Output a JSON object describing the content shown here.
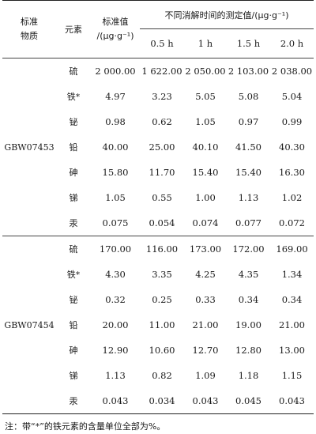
{
  "header": {
    "col_material_line1": "标准",
    "col_material_line2": "物质",
    "col_element": "元素",
    "col_standard_line1": "标准值",
    "col_standard_line2": "/(μg·g⁻¹)",
    "col_measured_group": "不同消解时间的测定值/(μg·g⁻¹)",
    "times": [
      "0.5 h",
      "1 h",
      "1.5 h",
      "2.0 h"
    ]
  },
  "groups": [
    {
      "material": "GBW07453",
      "rows": [
        {
          "element": "硫",
          "standard": "2 000.00",
          "values": [
            "1 622.00",
            "2 050.00",
            "2 103.00",
            "2 038.00"
          ]
        },
        {
          "element": "铁*",
          "standard": "4.97",
          "values": [
            "3.23",
            "5.05",
            "5.08",
            "5.04"
          ]
        },
        {
          "element": "铋",
          "standard": "0.98",
          "values": [
            "0.62",
            "1.05",
            "0.97",
            "0.99"
          ]
        },
        {
          "element": "铅",
          "standard": "40.00",
          "values": [
            "25.00",
            "40.10",
            "41.50",
            "40.30"
          ]
        },
        {
          "element": "砷",
          "standard": "15.80",
          "values": [
            "11.70",
            "15.40",
            "15.40",
            "16.30"
          ]
        },
        {
          "element": "锑",
          "standard": "1.05",
          "values": [
            "0.55",
            "1.00",
            "1.13",
            "1.02"
          ]
        },
        {
          "element": "汞",
          "standard": "0.075",
          "values": [
            "0.054",
            "0.074",
            "0.077",
            "0.072"
          ]
        }
      ]
    },
    {
      "material": "GBW07454",
      "rows": [
        {
          "element": "硫",
          "standard": "170.00",
          "values": [
            "116.00",
            "173.00",
            "172.00",
            "169.00"
          ]
        },
        {
          "element": "铁*",
          "standard": "4.30",
          "values": [
            "3.35",
            "4.25",
            "4.35",
            "1.34"
          ]
        },
        {
          "element": "铋",
          "standard": "0.32",
          "values": [
            "0.25",
            "0.33",
            "0.34",
            "0.34"
          ]
        },
        {
          "element": "铅",
          "standard": "20.00",
          "values": [
            "11.00",
            "21.00",
            "19.00",
            "21.00"
          ]
        },
        {
          "element": "砷",
          "standard": "12.90",
          "values": [
            "10.60",
            "12.70",
            "12.80",
            "13.00"
          ]
        },
        {
          "element": "锑",
          "standard": "1.13",
          "values": [
            "0.82",
            "1.09",
            "1.18",
            "1.15"
          ]
        },
        {
          "element": "汞",
          "standard": "0.043",
          "values": [
            "0.034",
            "0.043",
            "0.045",
            "0.043"
          ]
        }
      ]
    }
  ],
  "note": "注：带“*”的铁元素的含量单位全部为%。"
}
